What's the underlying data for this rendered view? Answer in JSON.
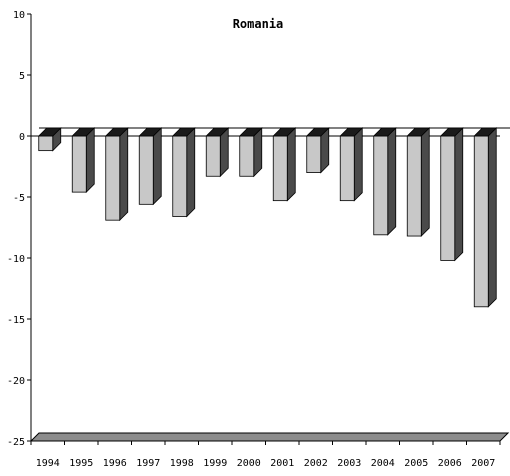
{
  "chart_data": {
    "type": "bar",
    "title": "Romania",
    "xlabel": "",
    "ylabel": "",
    "categories": [
      "1994",
      "1995",
      "1996",
      "1997",
      "1998",
      "1999",
      "2000",
      "2001",
      "2002",
      "2003",
      "2004",
      "2005",
      "2006",
      "2007"
    ],
    "values": [
      -1.2,
      -4.6,
      -6.9,
      -5.6,
      -6.6,
      -3.3,
      -3.3,
      -5.3,
      -3.0,
      -5.3,
      -8.1,
      -8.2,
      -10.2,
      -14.0
    ],
    "ylim": [
      -25,
      10
    ],
    "yticks": [
      "10",
      "5",
      "0",
      "-5",
      "-10",
      "-15",
      "-20",
      "-25"
    ],
    "grid": false,
    "legend": "none",
    "three_d": true,
    "colors": {
      "bar_front": "#c8c8c8",
      "bar_side": "#4a4a4a",
      "bar_top": "#1a1a1a",
      "floor": "#8c8c8c",
      "axis": "#000000"
    }
  }
}
